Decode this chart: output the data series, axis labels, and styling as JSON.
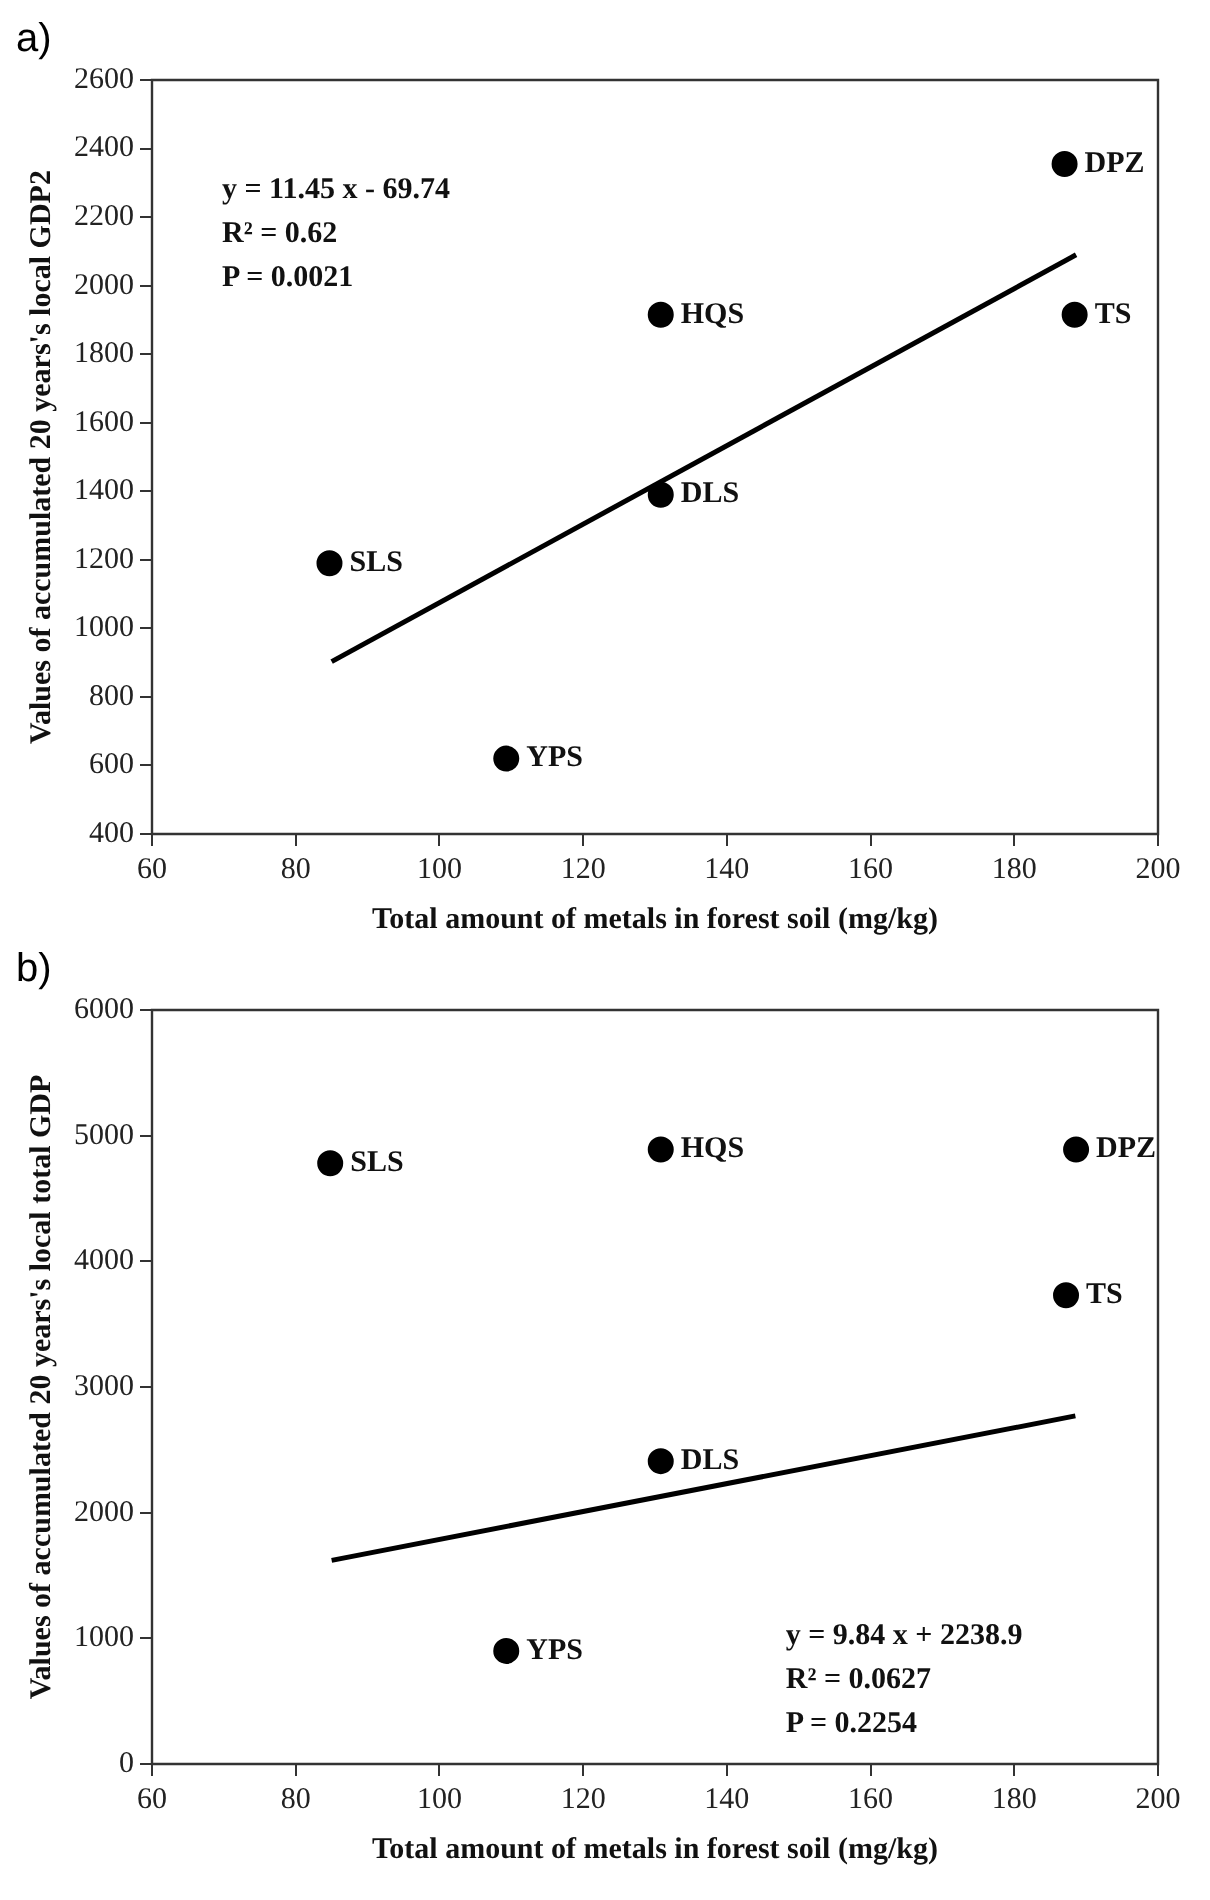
{
  "chart_data": [
    {
      "type": "scatter",
      "title": "a)",
      "xlabel": "Total amount of metals in forest soil (mg/kg)",
      "ylabel": "Values of accumulated 20 years's local GDP2",
      "xlim": [
        60,
        200
      ],
      "xticks": [
        60,
        80,
        100,
        120,
        140,
        160,
        180,
        200
      ],
      "ylim": [
        400,
        2600
      ],
      "yticks": [
        400,
        600,
        800,
        1000,
        1200,
        1400,
        1600,
        1800,
        2000,
        2200,
        2400,
        2600
      ],
      "series": [
        {
          "type": "scatter",
          "marker": "circle",
          "color": "#000000",
          "x": [
            84.7,
            109.3,
            130.8,
            130.8,
            187,
            188.4
          ],
          "values": [
            1190,
            620,
            1915,
            1390,
            2355,
            1915
          ]
        },
        {
          "type": "line",
          "marker": "none",
          "color": "#000000",
          "line_style": "solid",
          "x": [
            85,
            188.6
          ],
          "values": [
            903,
            2090
          ]
        }
      ],
      "annotations": [
        {
          "text": "SLS",
          "x": 84.7,
          "y": 1190
        },
        {
          "text": "YPS",
          "x": 109.3,
          "y": 620
        },
        {
          "text": "HQS",
          "x": 130.8,
          "y": 1915
        },
        {
          "text": "DLS",
          "x": 130.8,
          "y": 1390
        },
        {
          "text": "DPZ",
          "x": 187,
          "y": 2355
        },
        {
          "text": "TS",
          "x": 188.4,
          "y": 1915
        },
        "y = 11.45 x - 69.74",
        "R² = 0.62",
        "P = 0.0021"
      ]
    },
    {
      "type": "scatter",
      "title": "b)",
      "xlabel": "Total amount of metals in forest soil (mg/kg)",
      "ylabel": "Values of accumulated 20 years's local total GDP",
      "xlim": [
        60,
        200
      ],
      "xticks": [
        60,
        80,
        100,
        120,
        140,
        160,
        180,
        200
      ],
      "ylim": [
        0,
        6000
      ],
      "yticks": [
        0,
        1000,
        2000,
        3000,
        4000,
        5000,
        6000
      ],
      "series": [
        {
          "type": "scatter",
          "marker": "circle",
          "color": "#000000",
          "x": [
            84.8,
            109.3,
            130.8,
            130.8,
            188.6,
            187.2
          ],
          "values": [
            4780,
            900,
            4890,
            2410,
            4890,
            3730
          ]
        },
        {
          "type": "line",
          "marker": "none",
          "color": "#000000",
          "line_style": "solid",
          "x": [
            85,
            188.5
          ],
          "values": [
            1620,
            2770
          ]
        }
      ],
      "annotations": [
        {
          "text": "SLS",
          "x": 84.8,
          "y": 4780
        },
        {
          "text": "YPS",
          "x": 109.3,
          "y": 900
        },
        {
          "text": "HQS",
          "x": 130.8,
          "y": 4890
        },
        {
          "text": "DLS",
          "x": 130.8,
          "y": 2410
        },
        {
          "text": "DPZ",
          "x": 188.6,
          "y": 4890
        },
        {
          "text": "TS",
          "x": 187.2,
          "y": 3730
        },
        "y = 9.84 x + 2238.9",
        "R² = 0.0627",
        "P = 0.2254"
      ]
    }
  ]
}
